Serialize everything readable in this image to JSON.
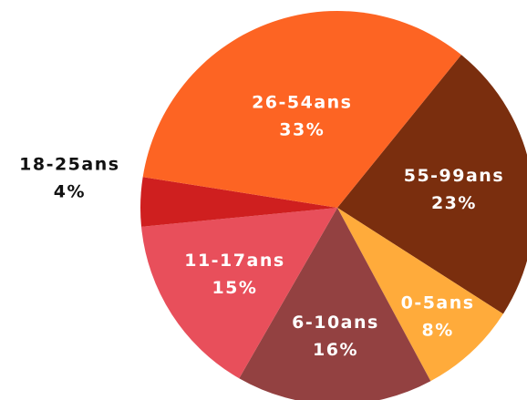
{
  "chart_data": {
    "type": "pie",
    "categories": [
      "55-99ans",
      "0-5ans",
      "6-10ans",
      "11-17ans",
      "18-25ans",
      "26-54ans"
    ],
    "values": [
      23,
      8,
      16,
      15,
      4,
      33
    ],
    "value_labels": [
      "23%",
      "8%",
      "16%",
      "15%",
      "4%",
      "33%"
    ],
    "colors": [
      "#7a2e0e",
      "#ffab3b",
      "#934141",
      "#e84f5b",
      "#cf1f1f",
      "#fd6423"
    ]
  }
}
